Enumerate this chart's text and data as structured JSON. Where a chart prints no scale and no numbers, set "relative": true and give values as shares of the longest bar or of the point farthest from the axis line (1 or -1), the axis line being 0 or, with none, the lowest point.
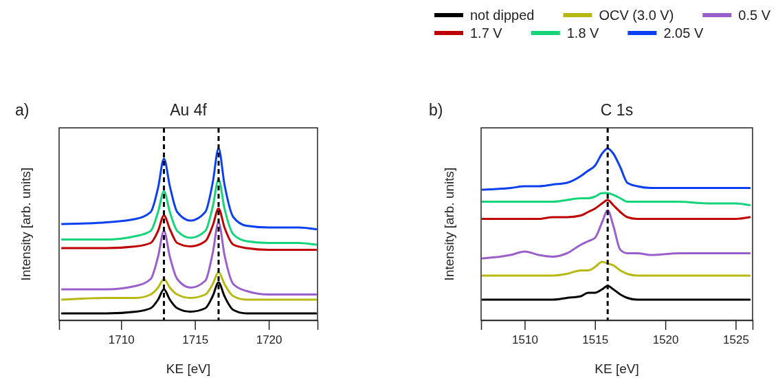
{
  "chart_data": [
    {
      "type": "line",
      "title": "Au 4f",
      "xlabel": "KE  [eV]",
      "ylabel": "Intensity [arb. units]",
      "annotations": [
        "a)"
      ],
      "relative": true,
      "tick_labels": "x",
      "x": [
        1706,
        1709,
        1711,
        1712,
        1712.5,
        1712.9,
        1713.3,
        1713.8,
        1714.7,
        1715.7,
        1716.2,
        1716.6,
        1717.0,
        1717.6,
        1718.5,
        1720,
        1722,
        1723.2
      ],
      "xlim": [
        1705.8,
        1723.3
      ],
      "xticks": [
        1710,
        1715,
        1720
      ],
      "series": [
        {
          "color": "#000000",
          "values": [
            0.04,
            0.04,
            0.05,
            0.07,
            0.12,
            0.18,
            0.12,
            0.07,
            0.05,
            0.07,
            0.14,
            0.22,
            0.14,
            0.06,
            0.04,
            0.04,
            0.04,
            0.04
          ]
        },
        {
          "color": "#b8b812",
          "values": [
            0.12,
            0.13,
            0.13,
            0.15,
            0.19,
            0.24,
            0.19,
            0.15,
            0.13,
            0.15,
            0.21,
            0.28,
            0.21,
            0.14,
            0.12,
            0.12,
            0.12,
            0.12
          ]
        },
        {
          "color": "#9b5fcc",
          "values": [
            0.18,
            0.18,
            0.2,
            0.24,
            0.37,
            0.52,
            0.37,
            0.24,
            0.19,
            0.23,
            0.39,
            0.57,
            0.38,
            0.21,
            0.17,
            0.15,
            0.15,
            0.15
          ]
        },
        {
          "color": "#c00000",
          "values": [
            0.42,
            0.42,
            0.43,
            0.45,
            0.52,
            0.61,
            0.53,
            0.45,
            0.43,
            0.46,
            0.55,
            0.65,
            0.54,
            0.44,
            0.42,
            0.41,
            0.41,
            0.41
          ]
        },
        {
          "color": "#16d47a",
          "values": [
            0.47,
            0.47,
            0.49,
            0.52,
            0.63,
            0.75,
            0.63,
            0.52,
            0.48,
            0.52,
            0.66,
            0.82,
            0.65,
            0.5,
            0.46,
            0.45,
            0.45,
            0.44
          ]
        },
        {
          "color": "#0a40f0",
          "values": [
            0.56,
            0.57,
            0.59,
            0.63,
            0.77,
            0.94,
            0.78,
            0.63,
            0.58,
            0.63,
            0.8,
            1,
            0.79,
            0.6,
            0.55,
            0.54,
            0.54,
            0.53
          ]
        }
      ],
      "ref_lines": [
        {
          "axis": "x",
          "value": 1712.9,
          "color": "#000000",
          "line_style": "dashed"
        },
        {
          "axis": "x",
          "value": 1716.6,
          "color": "#000000",
          "line_style": "dashed"
        }
      ],
      "grid": false,
      "line_style": "solid"
    },
    {
      "type": "line",
      "title": "C 1s",
      "xlabel": "KE  [eV]",
      "ylabel": "Intensity [arb. units]",
      "annotations": [
        "b)"
      ],
      "relative": true,
      "tick_labels": "x",
      "x": [
        1507,
        1509,
        1510,
        1511,
        1512,
        1513,
        1514,
        1514.5,
        1515,
        1515.5,
        1515.9,
        1516.3,
        1516.8,
        1517.3,
        1518,
        1519,
        1521,
        1523,
        1525,
        1526
      ],
      "xlim": [
        1506.9,
        1526.2
      ],
      "xticks": [
        1510,
        1515,
        1520,
        1525
      ],
      "series": [
        {
          "name": "not dipped",
          "color": "#000000",
          "values": [
            0.12,
            0.12,
            0.12,
            0.12,
            0.12,
            0.13,
            0.14,
            0.16,
            0.16,
            0.18,
            0.2,
            0.18,
            0.15,
            0.13,
            0.12,
            0.12,
            0.12,
            0.12,
            0.12,
            0.12
          ]
        },
        {
          "name": "OCV (3.0 V)",
          "color": "#b8b812",
          "values": [
            0.26,
            0.26,
            0.26,
            0.26,
            0.26,
            0.27,
            0.29,
            0.29,
            0.31,
            0.34,
            0.33,
            0.32,
            0.29,
            0.27,
            0.26,
            0.26,
            0.26,
            0.26,
            0.26,
            0.26
          ]
        },
        {
          "name": "0.5 V",
          "color": "#9b5fcc",
          "values": [
            0.36,
            0.38,
            0.4,
            0.38,
            0.37,
            0.39,
            0.44,
            0.46,
            0.48,
            0.57,
            0.64,
            0.55,
            0.41,
            0.39,
            0.39,
            0.38,
            0.39,
            0.39,
            0.39,
            0.39
          ]
        },
        {
          "name": "1.7 V",
          "color": "#c00000",
          "values": [
            0.59,
            0.59,
            0.59,
            0.59,
            0.6,
            0.6,
            0.61,
            0.63,
            0.65,
            0.68,
            0.7,
            0.67,
            0.63,
            0.6,
            0.59,
            0.59,
            0.59,
            0.59,
            0.59,
            0.6
          ]
        },
        {
          "name": "1.8 V",
          "color": "#16d47a",
          "values": [
            0.69,
            0.69,
            0.69,
            0.69,
            0.69,
            0.7,
            0.71,
            0.71,
            0.72,
            0.74,
            0.74,
            0.73,
            0.71,
            0.69,
            0.69,
            0.69,
            0.69,
            0.68,
            0.68,
            0.67
          ]
        },
        {
          "name": "2.05 V",
          "color": "#0a40f0",
          "values": [
            0.76,
            0.77,
            0.78,
            0.78,
            0.79,
            0.8,
            0.84,
            0.87,
            0.9,
            0.97,
            1,
            0.97,
            0.89,
            0.8,
            0.78,
            0.77,
            0.77,
            0.77,
            0.77,
            0.77
          ]
        }
      ],
      "ref_lines": [
        {
          "axis": "x",
          "value": 1515.9,
          "color": "#000000",
          "line_style": "dashed"
        }
      ],
      "grid": false,
      "line_style": "solid",
      "legend": "top"
    }
  ]
}
